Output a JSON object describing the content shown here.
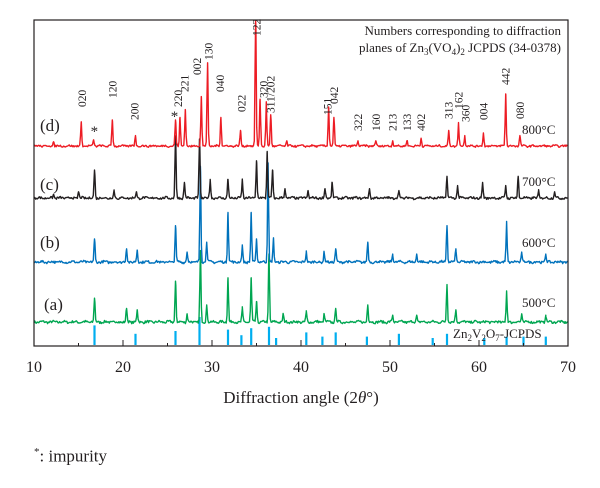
{
  "chart_data": {
    "type": "line",
    "xlabel": "Diffraction angle (2θ°)",
    "xlabel_parts": [
      "Diffraction angle (2",
      "θ",
      "°)"
    ],
    "xlim": [
      10,
      70
    ],
    "x_ticks": [
      10,
      20,
      30,
      40,
      50,
      60,
      70
    ],
    "annotation": {
      "line1": "Numbers corresponding to diffraction",
      "line2_pre": "planes of Zn",
      "line2_sub1": "3",
      "line2_mid": "(VO",
      "line2_sub2": "4",
      "line2_mid2": ")",
      "line2_sub3": "2",
      "line2_post": " JCPDS (34-0378)"
    },
    "reference": {
      "label_parts": [
        "Zn",
        "2",
        "V",
        "2",
        "O",
        "7",
        "-JCPDS"
      ],
      "color": "#00aeef",
      "peaks": [
        {
          "x": 16.8,
          "h": 0.7
        },
        {
          "x": 21.4,
          "h": 0.4
        },
        {
          "x": 25.9,
          "h": 0.5
        },
        {
          "x": 28.6,
          "h": 1.0
        },
        {
          "x": 31.8,
          "h": 0.55
        },
        {
          "x": 33.3,
          "h": 0.35
        },
        {
          "x": 34.4,
          "h": 0.6
        },
        {
          "x": 36.4,
          "h": 0.65
        },
        {
          "x": 37.2,
          "h": 0.25
        },
        {
          "x": 40.6,
          "h": 0.45
        },
        {
          "x": 42.4,
          "h": 0.3
        },
        {
          "x": 43.9,
          "h": 0.45
        },
        {
          "x": 47.4,
          "h": 0.3
        },
        {
          "x": 51.0,
          "h": 0.4
        },
        {
          "x": 54.8,
          "h": 0.25
        },
        {
          "x": 56.4,
          "h": 0.4
        },
        {
          "x": 60.6,
          "h": 0.25
        },
        {
          "x": 63.1,
          "h": 0.3
        },
        {
          "x": 65.0,
          "h": 0.3
        },
        {
          "x": 67.5,
          "h": 0.3
        }
      ]
    },
    "series": [
      {
        "name": "500°C",
        "label": "(a)",
        "temp": "500",
        "color": "#00a651",
        "peaks": [
          {
            "x": 16.8,
            "h": 0.35
          },
          {
            "x": 20.4,
            "h": 0.2
          },
          {
            "x": 21.6,
            "h": 0.18
          },
          {
            "x": 25.9,
            "h": 0.6
          },
          {
            "x": 27.2,
            "h": 0.12
          },
          {
            "x": 28.7,
            "h": 1.05
          },
          {
            "x": 29.4,
            "h": 0.25
          },
          {
            "x": 31.8,
            "h": 0.65
          },
          {
            "x": 33.4,
            "h": 0.2
          },
          {
            "x": 34.4,
            "h": 0.65
          },
          {
            "x": 35.0,
            "h": 0.3
          },
          {
            "x": 36.4,
            "h": 1.0
          },
          {
            "x": 38.0,
            "h": 0.12
          },
          {
            "x": 40.6,
            "h": 0.15
          },
          {
            "x": 42.6,
            "h": 0.12
          },
          {
            "x": 43.9,
            "h": 0.2
          },
          {
            "x": 47.5,
            "h": 0.25
          },
          {
            "x": 50.3,
            "h": 0.1
          },
          {
            "x": 53.0,
            "h": 0.1
          },
          {
            "x": 56.4,
            "h": 0.55
          },
          {
            "x": 57.4,
            "h": 0.18
          },
          {
            "x": 63.1,
            "h": 0.45
          },
          {
            "x": 64.8,
            "h": 0.12
          },
          {
            "x": 67.5,
            "h": 0.1
          }
        ]
      },
      {
        "name": "600°C",
        "label": "(b)",
        "temp": "600",
        "color": "#0072bc",
        "peaks": [
          {
            "x": 16.8,
            "h": 0.35
          },
          {
            "x": 20.4,
            "h": 0.2
          },
          {
            "x": 21.6,
            "h": 0.18
          },
          {
            "x": 25.9,
            "h": 0.55
          },
          {
            "x": 27.2,
            "h": 0.15
          },
          {
            "x": 28.7,
            "h": 1.45
          },
          {
            "x": 29.4,
            "h": 0.3
          },
          {
            "x": 31.8,
            "h": 0.75
          },
          {
            "x": 33.4,
            "h": 0.25
          },
          {
            "x": 34.4,
            "h": 0.75
          },
          {
            "x": 35.0,
            "h": 0.35
          },
          {
            "x": 36.3,
            "h": 1.5
          },
          {
            "x": 36.9,
            "h": 0.35
          },
          {
            "x": 40.6,
            "h": 0.15
          },
          {
            "x": 42.6,
            "h": 0.15
          },
          {
            "x": 43.9,
            "h": 0.2
          },
          {
            "x": 47.5,
            "h": 0.3
          },
          {
            "x": 50.3,
            "h": 0.12
          },
          {
            "x": 53.0,
            "h": 0.12
          },
          {
            "x": 56.4,
            "h": 0.55
          },
          {
            "x": 57.4,
            "h": 0.2
          },
          {
            "x": 63.1,
            "h": 0.6
          },
          {
            "x": 64.8,
            "h": 0.15
          },
          {
            "x": 67.5,
            "h": 0.12
          }
        ]
      },
      {
        "name": "700°C",
        "label": "(c)",
        "temp": "700",
        "color": "#231f20",
        "peaks": [
          {
            "x": 12.2,
            "h": 0.06
          },
          {
            "x": 15.0,
            "h": 0.1
          },
          {
            "x": 16.8,
            "h": 0.45
          },
          {
            "x": 19.0,
            "h": 0.12
          },
          {
            "x": 21.5,
            "h": 0.1
          },
          {
            "x": 25.9,
            "h": 1.0
          },
          {
            "x": 26.9,
            "h": 0.25
          },
          {
            "x": 28.6,
            "h": 0.95
          },
          {
            "x": 29.8,
            "h": 0.3
          },
          {
            "x": 31.8,
            "h": 0.3
          },
          {
            "x": 33.4,
            "h": 0.3
          },
          {
            "x": 35.0,
            "h": 0.6
          },
          {
            "x": 36.2,
            "h": 0.75
          },
          {
            "x": 36.8,
            "h": 0.45
          },
          {
            "x": 38.2,
            "h": 0.15
          },
          {
            "x": 40.8,
            "h": 0.12
          },
          {
            "x": 42.7,
            "h": 0.15
          },
          {
            "x": 43.5,
            "h": 0.25
          },
          {
            "x": 47.7,
            "h": 0.15
          },
          {
            "x": 51.0,
            "h": 0.12
          },
          {
            "x": 56.4,
            "h": 0.35
          },
          {
            "x": 57.6,
            "h": 0.2
          },
          {
            "x": 60.4,
            "h": 0.25
          },
          {
            "x": 63.0,
            "h": 0.2
          },
          {
            "x": 64.4,
            "h": 0.35
          },
          {
            "x": 66.7,
            "h": 0.12
          },
          {
            "x": 68.5,
            "h": 0.1
          }
        ]
      },
      {
        "name": "800°C",
        "label": "(d)",
        "temp": "800",
        "color": "#ed1c24",
        "peaks": [
          {
            "x": 12.2,
            "h": 0.08
          },
          {
            "x": 15.3,
            "h": 0.45
          },
          {
            "x": 16.7,
            "h": 0.12
          },
          {
            "x": 18.8,
            "h": 0.5
          },
          {
            "x": 21.4,
            "h": 0.2
          },
          {
            "x": 25.9,
            "h": 0.5
          },
          {
            "x": 26.4,
            "h": 0.55
          },
          {
            "x": 27.0,
            "h": 0.7
          },
          {
            "x": 28.8,
            "h": 0.95
          },
          {
            "x": 29.5,
            "h": 1.6
          },
          {
            "x": 31.0,
            "h": 0.55
          },
          {
            "x": 33.2,
            "h": 0.3
          },
          {
            "x": 34.9,
            "h": 2.6
          },
          {
            "x": 35.4,
            "h": 0.9
          },
          {
            "x": 36.1,
            "h": 0.85
          },
          {
            "x": 36.6,
            "h": 0.6
          },
          {
            "x": 38.4,
            "h": 0.1
          },
          {
            "x": 43.1,
            "h": 0.75
          },
          {
            "x": 43.7,
            "h": 0.55
          },
          {
            "x": 46.4,
            "h": 0.1
          },
          {
            "x": 48.4,
            "h": 0.1
          },
          {
            "x": 50.3,
            "h": 0.1
          },
          {
            "x": 51.9,
            "h": 0.1
          },
          {
            "x": 53.5,
            "h": 0.15
          },
          {
            "x": 56.6,
            "h": 0.3
          },
          {
            "x": 57.7,
            "h": 0.45
          },
          {
            "x": 58.4,
            "h": 0.2
          },
          {
            "x": 60.5,
            "h": 0.25
          },
          {
            "x": 63.0,
            "h": 1.0
          },
          {
            "x": 64.6,
            "h": 0.2
          }
        ]
      }
    ],
    "hkl_labels": [
      {
        "text": "020",
        "x": 15.4
      },
      {
        "text": "120",
        "x": 18.8
      },
      {
        "text": "200",
        "x": 21.3
      },
      {
        "text": "220",
        "x": 26.2
      },
      {
        "text": "221",
        "x": 26.9
      },
      {
        "text": "002",
        "x": 28.3
      },
      {
        "text": "130",
        "x": 29.6
      },
      {
        "text": "040",
        "x": 30.9
      },
      {
        "text": "022",
        "x": 33.3
      },
      {
        "text": "122",
        "x": 35.0
      },
      {
        "text": "320",
        "x": 35.8
      },
      {
        "text": "311/202",
        "x": 36.6
      },
      {
        "text": "151",
        "x": 43.0
      },
      {
        "text": "042",
        "x": 43.7
      },
      {
        "text": "322",
        "x": 46.4
      },
      {
        "text": "160",
        "x": 48.4
      },
      {
        "text": "213",
        "x": 50.3
      },
      {
        "text": "133",
        "x": 51.9
      },
      {
        "text": "402",
        "x": 53.5
      },
      {
        "text": "313",
        "x": 56.6
      },
      {
        "text": "162",
        "x": 57.7
      },
      {
        "text": "360",
        "x": 58.5
      },
      {
        "text": "004",
        "x": 60.5
      },
      {
        "text": "442",
        "x": 63.0
      },
      {
        "text": "080",
        "x": 64.6
      }
    ],
    "impurity_marks": [
      {
        "text": "*",
        "x": 16.7,
        "series": "(d)"
      },
      {
        "text": "*",
        "x": 25.7,
        "series": "(d)"
      }
    ]
  },
  "footnote": {
    "star": "*",
    "text": ": impurity"
  }
}
